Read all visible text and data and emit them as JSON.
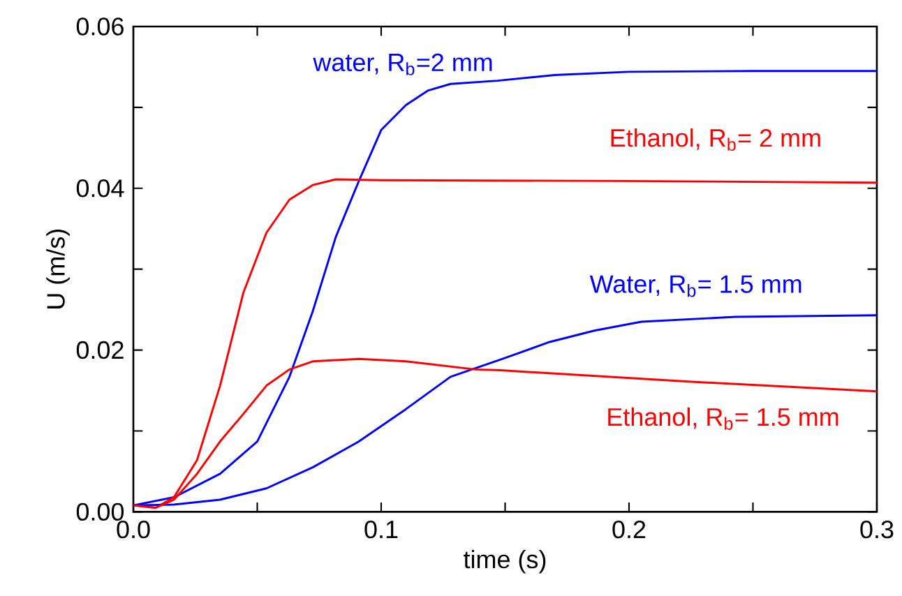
{
  "chart_data": {
    "type": "line",
    "xlabel": "time (s)",
    "ylabel": "U (m/s)",
    "xlim": [
      0,
      0.3
    ],
    "ylim": [
      0,
      0.06
    ],
    "xticks": [
      {
        "value": 0,
        "label": "0.0"
      },
      {
        "value": 0.05,
        "label": null
      },
      {
        "value": 0.1,
        "label": "0.1"
      },
      {
        "value": 0.15,
        "label": null
      },
      {
        "value": 0.2,
        "label": "0.2"
      },
      {
        "value": 0.25,
        "label": null
      },
      {
        "value": 0.3,
        "label": "0.3"
      }
    ],
    "yticks": [
      {
        "value": 0,
        "label": "0.00"
      },
      {
        "value": 0.01,
        "label": null
      },
      {
        "value": 0.02,
        "label": "0.02"
      },
      {
        "value": 0.03,
        "label": null
      },
      {
        "value": 0.04,
        "label": "0.04"
      },
      {
        "value": 0.05,
        "label": null
      },
      {
        "value": 0.06,
        "label": "0.06"
      }
    ],
    "grid": false,
    "marker": "none",
    "line_style": "solid",
    "series": [
      {
        "color": "#0000ff",
        "x": [
          0,
          0.0164,
          0.035,
          0.05,
          0.063,
          0.0724,
          0.0817,
          0.091,
          0.1,
          0.11,
          0.119,
          0.128,
          0.147,
          0.17,
          0.2,
          0.25,
          0.3
        ],
        "values": [
          0.0008,
          0.0018,
          0.0047,
          0.0087,
          0.0167,
          0.0248,
          0.034,
          0.0409,
          0.0472,
          0.0503,
          0.0521,
          0.0529,
          0.0533,
          0.054,
          0.0544,
          0.0545,
          0.0545
        ]
      },
      {
        "color": "#ff0000",
        "x": [
          0,
          0.009,
          0.0164,
          0.0257,
          0.035,
          0.0444,
          0.0537,
          0.063,
          0.0724,
          0.0817,
          0.1,
          0.2,
          0.3
        ],
        "values": [
          0.0008,
          0.0005,
          0.0018,
          0.0064,
          0.0156,
          0.0271,
          0.0345,
          0.0386,
          0.0404,
          0.0411,
          0.041,
          0.0409,
          0.0407
        ]
      },
      {
        "color": "#0000ff",
        "x": [
          0,
          0.0164,
          0.035,
          0.0537,
          0.0724,
          0.091,
          0.11,
          0.128,
          0.148,
          0.168,
          0.186,
          0.205,
          0.243,
          0.3
        ],
        "values": [
          0.0008,
          0.0009,
          0.0015,
          0.0029,
          0.0055,
          0.0087,
          0.0127,
          0.0167,
          0.0188,
          0.021,
          0.0224,
          0.0235,
          0.0241,
          0.0243
        ]
      },
      {
        "color": "#ff0000",
        "x": [
          0,
          0.009,
          0.0164,
          0.0257,
          0.035,
          0.0444,
          0.0537,
          0.063,
          0.0724,
          0.091,
          0.11,
          0.138,
          0.148,
          0.224,
          0.3
        ],
        "values": [
          0.0008,
          0.0005,
          0.0015,
          0.0047,
          0.0087,
          0.0121,
          0.0156,
          0.0176,
          0.0186,
          0.0189,
          0.0186,
          0.0176,
          0.0175,
          0.0161,
          0.0149
        ]
      }
    ],
    "annotations": [
      "water, R$_{b}$=2 mm",
      "Ethanol, R$_{b}$= 2 mm",
      "Water, R$_{b}$= 1.5 mm",
      "Ethanol, R$_{b}$= 1.5 mm"
    ]
  }
}
